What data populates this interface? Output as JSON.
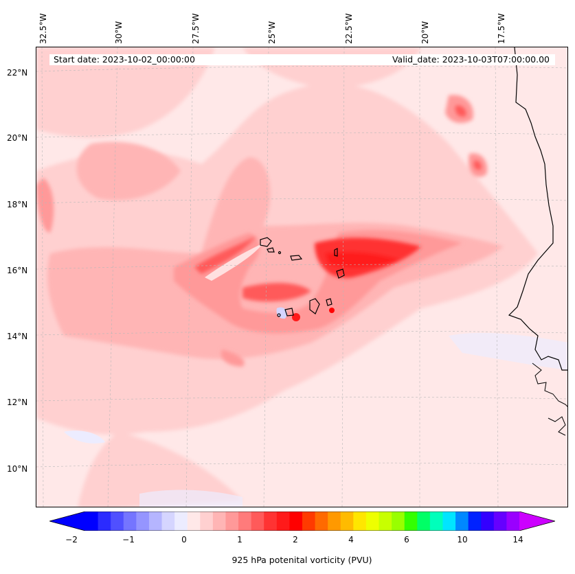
{
  "map": {
    "start_date": "Start date: 2023-10-02_00:00:00",
    "valid_date": "Valid_date: 2023-10-03T07:00:00.00",
    "lon_labels": [
      "32.5°W",
      "30°W",
      "27.5°W",
      "25°W",
      "22.5°W",
      "20°W",
      "17.5°W"
    ],
    "lat_labels": [
      "22°N",
      "20°N",
      "18°N",
      "16°N",
      "14°N",
      "12°N",
      "10°N"
    ],
    "field": "925 hPa potenital vorticity",
    "extent": {
      "lon_min": -33.0,
      "lon_max": -15.5,
      "lat_min": 8.9,
      "lat_max": 22.8
    }
  },
  "colorbar": {
    "label": "925 hPa potenital vorticity (PVU)",
    "tick_labels": [
      "−2",
      "−1",
      "0",
      "1",
      "2",
      "4",
      "6",
      "10",
      "14"
    ],
    "extend": "both",
    "colors": [
      "#0000ff",
      "#2b2bff",
      "#5050ff",
      "#7575ff",
      "#9595ff",
      "#b5b5ff",
      "#d5d5ff",
      "#ececff",
      "#ffe8e8",
      "#ffd0d0",
      "#ffb5b5",
      "#ff9999",
      "#ff7b7b",
      "#ff5a5a",
      "#ff3333",
      "#ff1a1a",
      "#ff0000",
      "#ff3a00",
      "#ff6a00",
      "#ff9900",
      "#ffbb00",
      "#ffe600",
      "#eeff00",
      "#c8ff00",
      "#99ff00",
      "#33ff00",
      "#00ff66",
      "#00ffbb",
      "#00e5ff",
      "#0088ff",
      "#0022ff",
      "#3300ff",
      "#6600ff",
      "#9900ff"
    ],
    "under_color": "#0000ff",
    "over_color": "#cc00ff"
  },
  "colors": {
    "background": "#ffe8e8",
    "light_pink": "#ffd0d0",
    "pink": "#ffb5b5",
    "medium": "#ff9999",
    "strong": "#ff5a5a",
    "max": "#ff1a1a",
    "negative": "#ececff",
    "coast": "#000000"
  }
}
